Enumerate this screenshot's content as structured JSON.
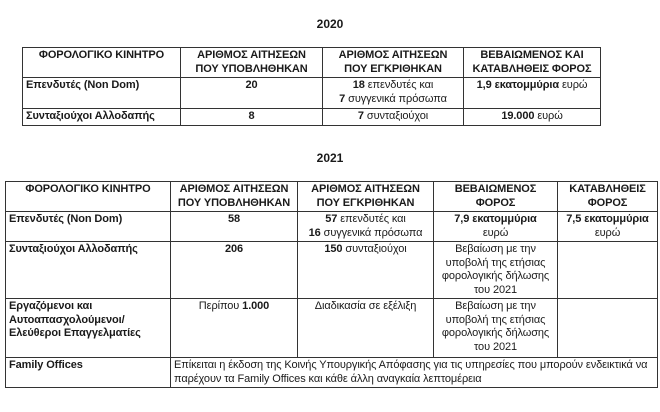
{
  "document": {
    "background": "#ffffff",
    "text_color": "#1a1a1a",
    "border_color": "#333333"
  },
  "sections": [
    {
      "title": "2020",
      "header": [
        {
          "lines": [
            [
              {
                "text": "ΦΟΡΟΛΟΓΙΚΟ ΚΙΝΗΤΡΟ",
                "bold": true
              }
            ]
          ]
        },
        {
          "lines": [
            [
              {
                "text": "ΑΡΙΘΜΟΣ ΑΙΤΗΣΕΩΝ",
                "bold": true
              }
            ],
            [
              {
                "text": "ΠΟΥ ΥΠΟΒΛΗΘΗΚΑΝ",
                "bold": true
              }
            ]
          ]
        },
        {
          "lines": [
            [
              {
                "text": "ΑΡΙΘΜΟΣ ΑΙΤΗΣΕΩΝ",
                "bold": true
              }
            ],
            [
              {
                "text": "ΠΟΥ ΕΓΚΡΙΘΗΚΑΝ",
                "bold": true
              }
            ]
          ]
        },
        {
          "lines": [
            [
              {
                "text": "ΒΕΒΑΙΩΜΕΝΟΣ ΚΑΙ",
                "bold": true
              }
            ],
            [
              {
                "text": "ΚΑΤΑΒΛΗΘΕΙΣ ΦΟΡΟΣ",
                "bold": true
              }
            ]
          ]
        }
      ],
      "rows": [
        [
          {
            "align": "left",
            "lines": [
              [
                {
                  "text": "Επενδυτές (Non Dom)",
                  "bold": true
                }
              ]
            ]
          },
          {
            "lines": [
              [
                {
                  "text": "20",
                  "bold": true
                }
              ]
            ]
          },
          {
            "lines": [
              [
                {
                  "text": "18",
                  "bold": true
                },
                {
                  "text": " επενδυτές και"
                }
              ],
              [
                {
                  "text": "7",
                  "bold": true
                },
                {
                  "text": " συγγενικά πρόσωπα"
                }
              ]
            ]
          },
          {
            "lines": [
              [
                {
                  "text": "1,9 εκατομμύρια",
                  "bold": true
                },
                {
                  "text": " ευρώ"
                }
              ]
            ]
          }
        ],
        [
          {
            "align": "left",
            "lines": [
              [
                {
                  "text": "Συνταξιούχοι Αλλοδαπής",
                  "bold": true
                }
              ]
            ]
          },
          {
            "lines": [
              [
                {
                  "text": "8",
                  "bold": true
                }
              ]
            ]
          },
          {
            "lines": [
              [
                {
                  "text": "7",
                  "bold": true
                },
                {
                  "text": " συνταξιούχοι"
                }
              ]
            ]
          },
          {
            "lines": [
              [
                {
                  "text": "19.000",
                  "bold": true
                },
                {
                  "text": " ευρώ"
                }
              ]
            ]
          }
        ]
      ]
    },
    {
      "title": "2021",
      "header": [
        {
          "lines": [
            [
              {
                "text": "ΦΟΡΟΛΟΓΙΚΟ ΚΙΝΗΤΡΟ",
                "bold": true
              }
            ]
          ]
        },
        {
          "lines": [
            [
              {
                "text": "ΑΡΙΘΜΟΣ ΑΙΤΗΣΕΩΝ",
                "bold": true
              }
            ],
            [
              {
                "text": "ΠΟΥ ΥΠΟΒΛΗΘΗΚΑΝ",
                "bold": true
              }
            ]
          ]
        },
        {
          "lines": [
            [
              {
                "text": "ΑΡΙΘΜΟΣ ΑΙΤΗΣΕΩΝ",
                "bold": true
              }
            ],
            [
              {
                "text": "ΠΟΥ ΕΓΚΡΙΘΗΚΑΝ",
                "bold": true
              }
            ]
          ]
        },
        {
          "lines": [
            [
              {
                "text": "ΒΕΒΑΙΩΜΕΝΟΣ",
                "bold": true
              }
            ],
            [
              {
                "text": "ΦΟΡΟΣ",
                "bold": true
              }
            ]
          ]
        },
        {
          "lines": [
            [
              {
                "text": "ΚΑΤΑΒΛΗΘΕΙΣ",
                "bold": true
              }
            ],
            [
              {
                "text": "ΦΟΡΟΣ",
                "bold": true
              }
            ]
          ]
        }
      ],
      "rows": [
        [
          {
            "align": "left",
            "lines": [
              [
                {
                  "text": "Επενδυτές (Non Dom)",
                  "bold": true
                }
              ]
            ]
          },
          {
            "lines": [
              [
                {
                  "text": "58",
                  "bold": true
                }
              ]
            ]
          },
          {
            "lines": [
              [
                {
                  "text": "57",
                  "bold": true
                },
                {
                  "text": " επενδυτές και"
                }
              ],
              [
                {
                  "text": "16",
                  "bold": true
                },
                {
                  "text": " συγγενικά πρόσωπα"
                }
              ]
            ]
          },
          {
            "lines": [
              [
                {
                  "text": "7,9 εκατομμύρια",
                  "bold": true
                }
              ],
              [
                {
                  "text": "ευρώ"
                }
              ]
            ]
          },
          {
            "lines": [
              [
                {
                  "text": "7,5 εκατομμύρια",
                  "bold": true
                }
              ],
              [
                {
                  "text": "ευρώ"
                }
              ]
            ]
          }
        ],
        [
          {
            "align": "left",
            "lines": [
              [
                {
                  "text": "Συνταξιούχοι Αλλοδαπής",
                  "bold": true
                }
              ]
            ]
          },
          {
            "lines": [
              [
                {
                  "text": "206",
                  "bold": true
                }
              ]
            ]
          },
          {
            "lines": [
              [
                {
                  "text": "150",
                  "bold": true
                },
                {
                  "text": " συνταξιούχοι"
                }
              ]
            ]
          },
          {
            "lines": [
              [
                {
                  "text": "Βεβαίωση με την"
                }
              ],
              [
                {
                  "text": "υποβολή της ετήσιας"
                }
              ],
              [
                {
                  "text": "φορολογικής δήλωσης"
                }
              ],
              [
                {
                  "text": "του 2021"
                }
              ]
            ]
          },
          {
            "lines": []
          }
        ],
        [
          {
            "align": "left",
            "lines": [
              [
                {
                  "text": "Εργαζόμενοι και",
                  "bold": true
                }
              ],
              [
                {
                  "text": "Αυτοαπασχολούμενοι/",
                  "bold": true
                }
              ],
              [
                {
                  "text": "Ελεύθεροι Επαγγελματίες",
                  "bold": true
                }
              ]
            ]
          },
          {
            "lines": [
              [
                {
                  "text": "Περίπου "
                },
                {
                  "text": "1.000",
                  "bold": true
                }
              ]
            ]
          },
          {
            "lines": [
              [
                {
                  "text": "Διαδικασία σε εξέλιξη"
                }
              ]
            ]
          },
          {
            "lines": [
              [
                {
                  "text": "Βεβαίωση με την"
                }
              ],
              [
                {
                  "text": "υποβολή της ετήσιας"
                }
              ],
              [
                {
                  "text": "φορολογικής δήλωσης"
                }
              ],
              [
                {
                  "text": "του 2021"
                }
              ]
            ]
          },
          {
            "lines": []
          }
        ],
        [
          {
            "align": "left",
            "lines": [
              [
                {
                  "text": "Family Offices",
                  "bold": true
                }
              ]
            ]
          },
          {
            "align": "left",
            "colspan": 4,
            "wrap": true,
            "lines": [
              [
                {
                  "text": "Επίκειται η έκδοση της Κοινής Υπουργικής Απόφασης για τις υπηρεσίες που μπορούν ενδεικτικά να παρέχουν τα Family Offices και κάθε άλλη αναγκαία λεπτομέρεια"
                }
              ]
            ]
          }
        ]
      ]
    }
  ]
}
